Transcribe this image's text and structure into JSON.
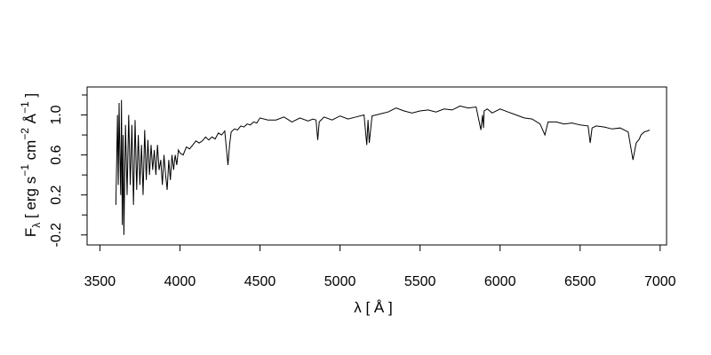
{
  "chart_data": {
    "type": "line",
    "xlabel": "λ [ Å ]",
    "ylabel_parts": {
      "f": "F",
      "lambda_sub": "λ",
      "open": " [ erg s",
      "exp1": "−1",
      "cm": " cm",
      "exp2": "−2",
      "ang": " Å",
      "exp3": "−1",
      "close": " ]"
    },
    "xlim": [
      3420,
      7040
    ],
    "ylim": [
      -0.3,
      1.28
    ],
    "xticks": [
      3500,
      4000,
      4500,
      5000,
      5500,
      6000,
      6500,
      7000
    ],
    "xtick_labels": [
      "3500",
      "4000",
      "4500",
      "5000",
      "5500",
      "6000",
      "6500",
      "7000"
    ],
    "yticks": [
      -0.2,
      0.2,
      0.6,
      1.0
    ],
    "ytick_labels": [
      "-0.2",
      "0.2",
      "0.6",
      "1.0"
    ],
    "y_minor_ticks": [
      0.0,
      0.4,
      0.8,
      1.2
    ],
    "grid": false,
    "line_color": "#000000",
    "series": [
      {
        "x": [
          3600,
          3605,
          3610,
          3615,
          3620,
          3625,
          3630,
          3635,
          3640,
          3645,
          3650,
          3660,
          3670,
          3680,
          3690,
          3700,
          3710,
          3720,
          3730,
          3740,
          3750,
          3760,
          3770,
          3780,
          3790,
          3800,
          3810,
          3820,
          3830,
          3840,
          3850,
          3860,
          3870,
          3880,
          3890,
          3900,
          3910,
          3920,
          3930,
          3940,
          3950,
          3960,
          3970,
          3980,
          3990,
          4000,
          4020,
          4040,
          4060,
          4080,
          4100,
          4120,
          4140,
          4160,
          4180,
          4200,
          4220,
          4240,
          4260,
          4280,
          4300,
          4310,
          4320,
          4340,
          4360,
          4380,
          4400,
          4420,
          4440,
          4460,
          4480,
          4500,
          4550,
          4600,
          4650,
          4700,
          4750,
          4800,
          4830,
          4850,
          4861,
          4870,
          4900,
          4950,
          5000,
          5050,
          5100,
          5150,
          5167,
          5175,
          5183,
          5200,
          5250,
          5300,
          5350,
          5400,
          5450,
          5500,
          5550,
          5600,
          5650,
          5700,
          5750,
          5800,
          5850,
          5880,
          5890,
          5896,
          5900,
          5920,
          5950,
          6000,
          6050,
          6100,
          6150,
          6200,
          6250,
          6280,
          6300,
          6350,
          6400,
          6450,
          6500,
          6550,
          6563,
          6575,
          6600,
          6650,
          6700,
          6750,
          6800,
          6830,
          6850,
          6870,
          6880,
          6900,
          6920,
          6935
        ],
        "y": [
          0.1,
          0.55,
          1.0,
          0.3,
          1.12,
          0.6,
          0.2,
          1.15,
          -0.1,
          0.8,
          -0.2,
          0.9,
          0.2,
          1.0,
          0.3,
          0.9,
          0.1,
          0.95,
          0.25,
          0.8,
          0.3,
          0.7,
          0.2,
          0.85,
          0.35,
          0.75,
          0.4,
          0.7,
          0.45,
          0.65,
          0.4,
          0.7,
          0.45,
          0.55,
          0.3,
          0.6,
          0.4,
          0.25,
          0.55,
          0.35,
          0.6,
          0.45,
          0.6,
          0.5,
          0.65,
          0.62,
          0.6,
          0.68,
          0.66,
          0.7,
          0.74,
          0.72,
          0.74,
          0.78,
          0.75,
          0.78,
          0.76,
          0.82,
          0.8,
          0.84,
          0.5,
          0.7,
          0.83,
          0.86,
          0.85,
          0.89,
          0.88,
          0.91,
          0.9,
          0.93,
          0.92,
          0.97,
          0.95,
          0.95,
          0.98,
          0.93,
          0.97,
          0.94,
          0.96,
          0.95,
          0.75,
          0.93,
          0.98,
          0.95,
          0.99,
          0.96,
          0.98,
          1.0,
          0.7,
          0.95,
          0.72,
          0.99,
          1.01,
          1.03,
          1.07,
          1.04,
          1.02,
          1.04,
          1.05,
          1.03,
          1.06,
          1.05,
          1.09,
          1.07,
          1.08,
          0.85,
          1.0,
          0.87,
          1.04,
          1.06,
          1.02,
          1.06,
          1.03,
          1.0,
          0.97,
          0.96,
          0.91,
          0.8,
          0.93,
          0.93,
          0.91,
          0.92,
          0.9,
          0.89,
          0.72,
          0.87,
          0.89,
          0.88,
          0.86,
          0.87,
          0.83,
          0.55,
          0.72,
          0.76,
          0.8,
          0.83,
          0.84,
          0.85
        ]
      }
    ]
  }
}
